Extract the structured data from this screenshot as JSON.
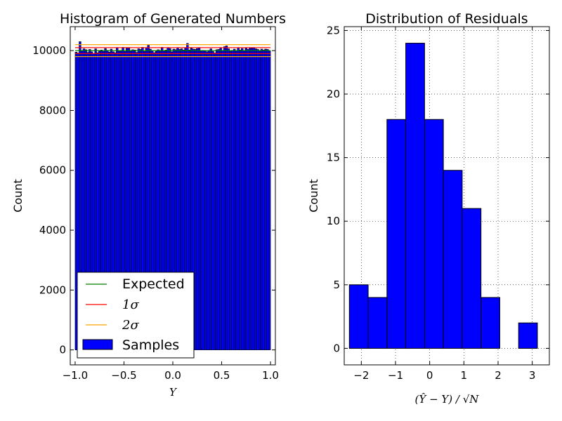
{
  "figure": {
    "background": "#ffffff"
  },
  "chart_data": [
    {
      "type": "bar",
      "title": "Histogram of Generated Numbers",
      "xlabel": "Y",
      "ylabel": "Count",
      "xlim": [
        -1.05,
        1.05
      ],
      "ylim": [
        -500,
        10800
      ],
      "xticks": [
        -1.0,
        -0.5,
        0.0,
        0.5,
        1.0
      ],
      "xtick_labels": [
        "−1.0",
        "−0.5",
        "0.0",
        "0.5",
        "1.0"
      ],
      "yticks": [
        0,
        2000,
        4000,
        6000,
        8000,
        10000
      ],
      "ytick_labels": [
        "0",
        "2000",
        "4000",
        "6000",
        "8000",
        "10000"
      ],
      "grid": false,
      "bin_range": [
        -1.0,
        1.0
      ],
      "bin_count": 100,
      "bar_color": "#0000ff",
      "values": [
        9950,
        9920,
        10300,
        9990,
        10060,
        10030,
        9940,
        10040,
        9960,
        9890,
        10060,
        9930,
        9990,
        10020,
        9970,
        10070,
        10010,
        9950,
        10050,
        9960,
        9930,
        10100,
        9980,
        10010,
        10110,
        9970,
        10090,
        10080,
        9990,
        10030,
        10020,
        9940,
        10060,
        10040,
        10110,
        9970,
        10100,
        10180,
        10050,
        9990,
        9930,
        9980,
        10030,
        10010,
        10110,
        9980,
        10020,
        10100,
        10070,
        9960,
        10050,
        10030,
        10090,
        10040,
        10060,
        10020,
        10090,
        10240,
        10020,
        10080,
        10050,
        10040,
        10070,
        10090,
        9990,
        10010,
        10000,
        9960,
        10010,
        10060,
        9970,
        9920,
        10030,
        10040,
        10100,
        10010,
        10130,
        10160,
        10060,
        9980,
        10010,
        10050,
        10000,
        10090,
        10020,
        10070,
        9990,
        10080,
        10040,
        10100,
        10080,
        10100,
        10060,
        10040,
        9990,
        10050,
        10020,
        10050,
        10040,
        9990
      ],
      "lines": [
        {
          "name": "Expected",
          "y": [
            10000
          ],
          "color": "#008000"
        },
        {
          "name": "1σ",
          "y": [
            9900,
            10100
          ],
          "color": "#ff0000"
        },
        {
          "name": "2σ",
          "y": [
            9800,
            10200
          ],
          "color": "#ffa500"
        }
      ],
      "legend": {
        "placement": "lower-left",
        "entries": [
          {
            "label": "Expected",
            "kind": "line",
            "color": "#008000"
          },
          {
            "label": "1σ",
            "kind": "line",
            "color": "#ff0000"
          },
          {
            "label": "2σ",
            "kind": "line",
            "color": "#ffa500"
          },
          {
            "label": "Samples",
            "kind": "patch",
            "color": "#0000ff"
          }
        ]
      }
    },
    {
      "type": "bar",
      "title": "Distribution of Residuals",
      "xlabel": "(Ŷ − Y) / √N",
      "ylabel": "Count",
      "xlim": [
        -2.5,
        3.5
      ],
      "ylim": [
        -1.3,
        25.3
      ],
      "xticks": [
        -2,
        -1,
        0,
        1,
        2,
        3
      ],
      "xtick_labels": [
        "−2",
        "−1",
        "0",
        "1",
        "2",
        "3"
      ],
      "yticks": [
        0,
        5,
        10,
        15,
        20,
        25
      ],
      "ytick_labels": [
        "0",
        "5",
        "10",
        "15",
        "20",
        "25"
      ],
      "grid": true,
      "bar_color": "#0000ff",
      "bin_edges": [
        -2.35,
        -1.8,
        -1.25,
        -0.7,
        -0.15,
        0.4,
        0.95,
        1.5,
        2.05,
        2.6,
        3.15
      ],
      "counts": [
        5,
        4,
        18,
        24,
        18,
        14,
        11,
        4,
        0,
        2
      ]
    }
  ]
}
